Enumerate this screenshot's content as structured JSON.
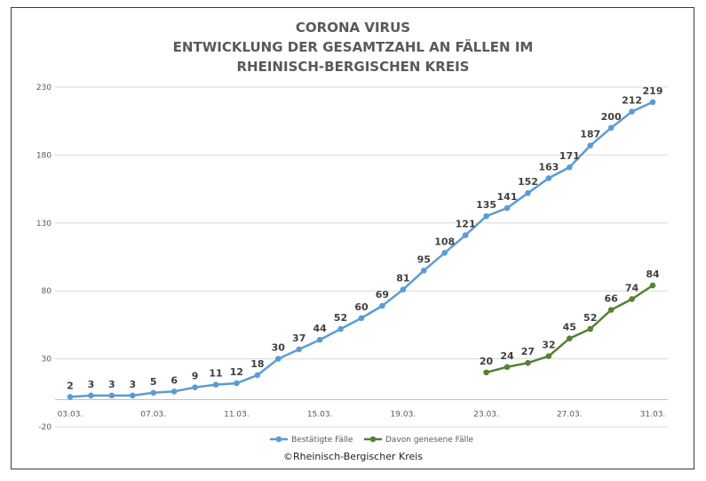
{
  "chart_data": {
    "type": "line",
    "title_lines": [
      "CORONA VIRUS",
      "ENTWICKLUNG DER GESAMTZAHL AN FÄLLEN IM",
      "RHEINISCH-BERGISCHEN KREIS"
    ],
    "ylim": [
      -20,
      230
    ],
    "yticks": [
      -20,
      30,
      80,
      130,
      180,
      230
    ],
    "xlabels": [
      "03.03.",
      "07.03.",
      "11.03.",
      "15.03.",
      "19.03.",
      "23.03.",
      "27.03.",
      "31.03."
    ],
    "x_start_day": 3,
    "x_end_day": 31,
    "grid": true,
    "legend_position": "bottom",
    "series": [
      {
        "name": "Bestätigte Fälle",
        "color": "#5b9bd5",
        "start_day": 3,
        "values": [
          2,
          3,
          3,
          3,
          5,
          6,
          9,
          11,
          12,
          18,
          30,
          37,
          44,
          52,
          60,
          69,
          81,
          95,
          108,
          121,
          135,
          141,
          152,
          163,
          171,
          187,
          200,
          212,
          219
        ]
      },
      {
        "name": "Davon genesene Fälle",
        "color": "#548235",
        "start_day": 23,
        "values": [
          20,
          24,
          27,
          32,
          45,
          52,
          66,
          74,
          84
        ]
      }
    ]
  },
  "copyright": "©Rheinisch-Bergischer Kreis"
}
